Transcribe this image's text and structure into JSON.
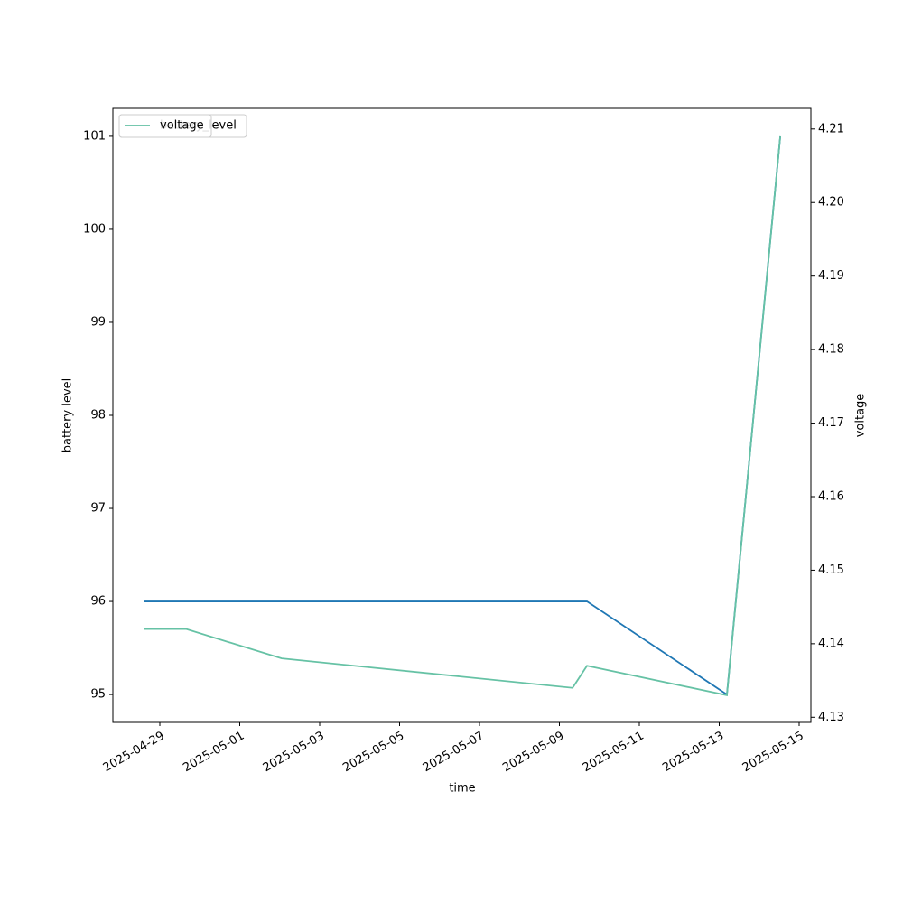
{
  "chart_data": {
    "type": "line",
    "x_label": "time",
    "y_label": "battery level",
    "y2_label": "voltage",
    "series": [
      {
        "name": "battery_level",
        "color": "#1f77b4",
        "axis": "y",
        "x": [
          "2025-04-28T14:47",
          "2025-05-09T16:34",
          "2025-05-13T04:36",
          "2025-05-14T12:40"
        ],
        "values": [
          96,
          96,
          95,
          101
        ]
      },
      {
        "name": "voltage",
        "color": "#66c2a5",
        "axis": "y2",
        "x": [
          "2025-04-28T14:47",
          "2025-04-29T15:43",
          "2025-05-02T01:13",
          "2025-05-09T07:54",
          "2025-05-09T16:34",
          "2025-05-13T04:36",
          "2025-05-14T12:40"
        ],
        "values": [
          4.142,
          4.142,
          4.138,
          4.134,
          4.137,
          4.133,
          4.209
        ]
      }
    ],
    "xlim": [
      "2025-04-27T19:48",
      "2025-05-15T07:03"
    ],
    "xticks": [
      "2025-04-29",
      "2025-05-01",
      "2025-05-03",
      "2025-05-05",
      "2025-05-07",
      "2025-05-09",
      "2025-05-11",
      "2025-05-13",
      "2025-05-15"
    ],
    "ylim": [
      94.7,
      101.3
    ],
    "yticks": [
      95,
      96,
      97,
      98,
      99,
      100,
      101
    ],
    "y2lim": [
      4.1293,
      4.2128
    ],
    "y2ticks": [
      4.13,
      4.14,
      4.15,
      4.16,
      4.17,
      4.18,
      4.19,
      {
        "value": 4.2,
        "label": "4.20"
      },
      4.21
    ],
    "legend": "upper left"
  }
}
